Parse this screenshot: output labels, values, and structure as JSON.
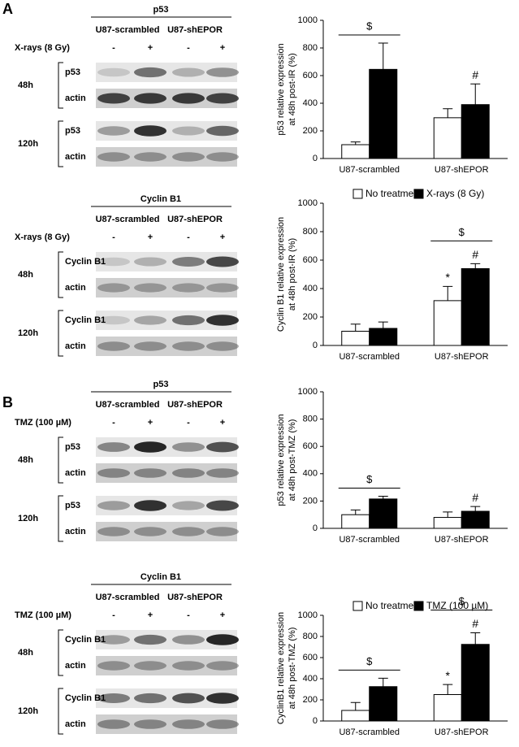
{
  "panel_labels": [
    "A",
    "B"
  ],
  "blots": [
    {
      "title": "p53",
      "groups": [
        "U87-scrambled",
        "U87-shEPOR"
      ],
      "treatment": "X-rays (8 Gy)",
      "signs": [
        "-",
        "+",
        "-",
        "+"
      ],
      "rows": [
        {
          "time": "48h",
          "bands": [
            "p53",
            "actin"
          ]
        },
        {
          "time": "120h",
          "bands": [
            "p53",
            "actin"
          ]
        }
      ]
    },
    {
      "title": "Cyclin B1",
      "groups": [
        "U87-scrambled",
        "U87-shEPOR"
      ],
      "treatment": "X-rays (8 Gy)",
      "signs": [
        "-",
        "+",
        "-",
        "+"
      ],
      "rows": [
        {
          "time": "48h",
          "bands": [
            "Cyclin B1",
            "actin"
          ]
        },
        {
          "time": "120h",
          "bands": [
            "Cyclin B1",
            "actin"
          ]
        }
      ]
    },
    {
      "title": "p53",
      "groups": [
        "U87-scrambled",
        "U87-shEPOR"
      ],
      "treatment": "TMZ (100 µM)",
      "signs": [
        "-",
        "+",
        "-",
        "+"
      ],
      "rows": [
        {
          "time": "48h",
          "bands": [
            "p53",
            "actin"
          ]
        },
        {
          "time": "120h",
          "bands": [
            "p53",
            "actin"
          ]
        }
      ]
    },
    {
      "title": "Cyclin B1",
      "groups": [
        "U87-scrambled",
        "U87-shEPOR"
      ],
      "treatment": "TMZ (100 µM)",
      "signs": [
        "-",
        "+",
        "-",
        "+"
      ],
      "rows": [
        {
          "time": "48h",
          "bands": [
            "Cyclin B1",
            "actin"
          ]
        },
        {
          "time": "120h",
          "bands": [
            "Cyclin B1",
            "actin"
          ]
        }
      ]
    }
  ],
  "chart_data": [
    {
      "type": "bar",
      "ylabel": [
        "p53 relative expression",
        "at 48h post-IR (%)"
      ],
      "categories": [
        "U87-scrambled",
        "U87-shEPOR"
      ],
      "series": [
        {
          "color": "#ffffff",
          "values": [
            100,
            295
          ],
          "errors": [
            20,
            65
          ],
          "markers": [
            null,
            null
          ]
        },
        {
          "color": "#000000",
          "values": [
            645,
            390
          ],
          "errors": [
            190,
            150
          ],
          "markers": [
            null,
            "#"
          ]
        }
      ],
      "brackets": [
        "$",
        null
      ],
      "ylim": [
        0,
        1000
      ],
      "yticks": [
        0,
        200,
        400,
        600,
        800,
        1000
      ],
      "legend": false
    },
    {
      "type": "bar",
      "ylabel": [
        "Cyclin B1 relative expression",
        "at 48h post-IR  (%)"
      ],
      "categories": [
        "U87-scrambled",
        "U87-shEPOR"
      ],
      "series": [
        {
          "name": "No treatment",
          "color": "#ffffff",
          "values": [
            100,
            315
          ],
          "errors": [
            50,
            100
          ],
          "markers": [
            null,
            "*"
          ]
        },
        {
          "name": "X-rays (8 Gy)",
          "color": "#000000",
          "values": [
            120,
            540
          ],
          "errors": [
            45,
            35
          ],
          "markers": [
            null,
            "#"
          ]
        }
      ],
      "brackets": [
        null,
        "$"
      ],
      "ylim": [
        0,
        1000
      ],
      "yticks": [
        0,
        200,
        400,
        600,
        800,
        1000
      ],
      "legend": true
    },
    {
      "type": "bar",
      "ylabel": [
        "p53 relative expression",
        "at 48h post-TMZ (%)"
      ],
      "categories": [
        "U87-scrambled",
        "U87-shEPOR"
      ],
      "series": [
        {
          "color": "#ffffff",
          "values": [
            100,
            80
          ],
          "errors": [
            35,
            40
          ],
          "markers": [
            null,
            null
          ]
        },
        {
          "color": "#000000",
          "values": [
            215,
            125
          ],
          "errors": [
            20,
            35
          ],
          "markers": [
            null,
            "#"
          ]
        }
      ],
      "brackets": [
        "$",
        null
      ],
      "ylim": [
        0,
        1000
      ],
      "yticks": [
        0,
        200,
        400,
        600,
        800,
        1000
      ],
      "legend": false
    },
    {
      "type": "bar",
      "ylabel": [
        "CyclinB1 relative expression",
        "at 48h post-TMZ (%)"
      ],
      "categories": [
        "U87-scrambled",
        "U87-shEPOR"
      ],
      "series": [
        {
          "name": "No treatment",
          "color": "#ffffff",
          "values": [
            100,
            250
          ],
          "errors": [
            75,
            95
          ],
          "markers": [
            null,
            "*"
          ]
        },
        {
          "name": "TMZ (100 µM)",
          "color": "#000000",
          "values": [
            325,
            725
          ],
          "errors": [
            80,
            110
          ],
          "markers": [
            null,
            "#"
          ]
        }
      ],
      "brackets": [
        "$",
        "$"
      ],
      "ylim": [
        0,
        1000
      ],
      "yticks": [
        0,
        200,
        400,
        600,
        800,
        1000
      ],
      "legend": true
    }
  ]
}
